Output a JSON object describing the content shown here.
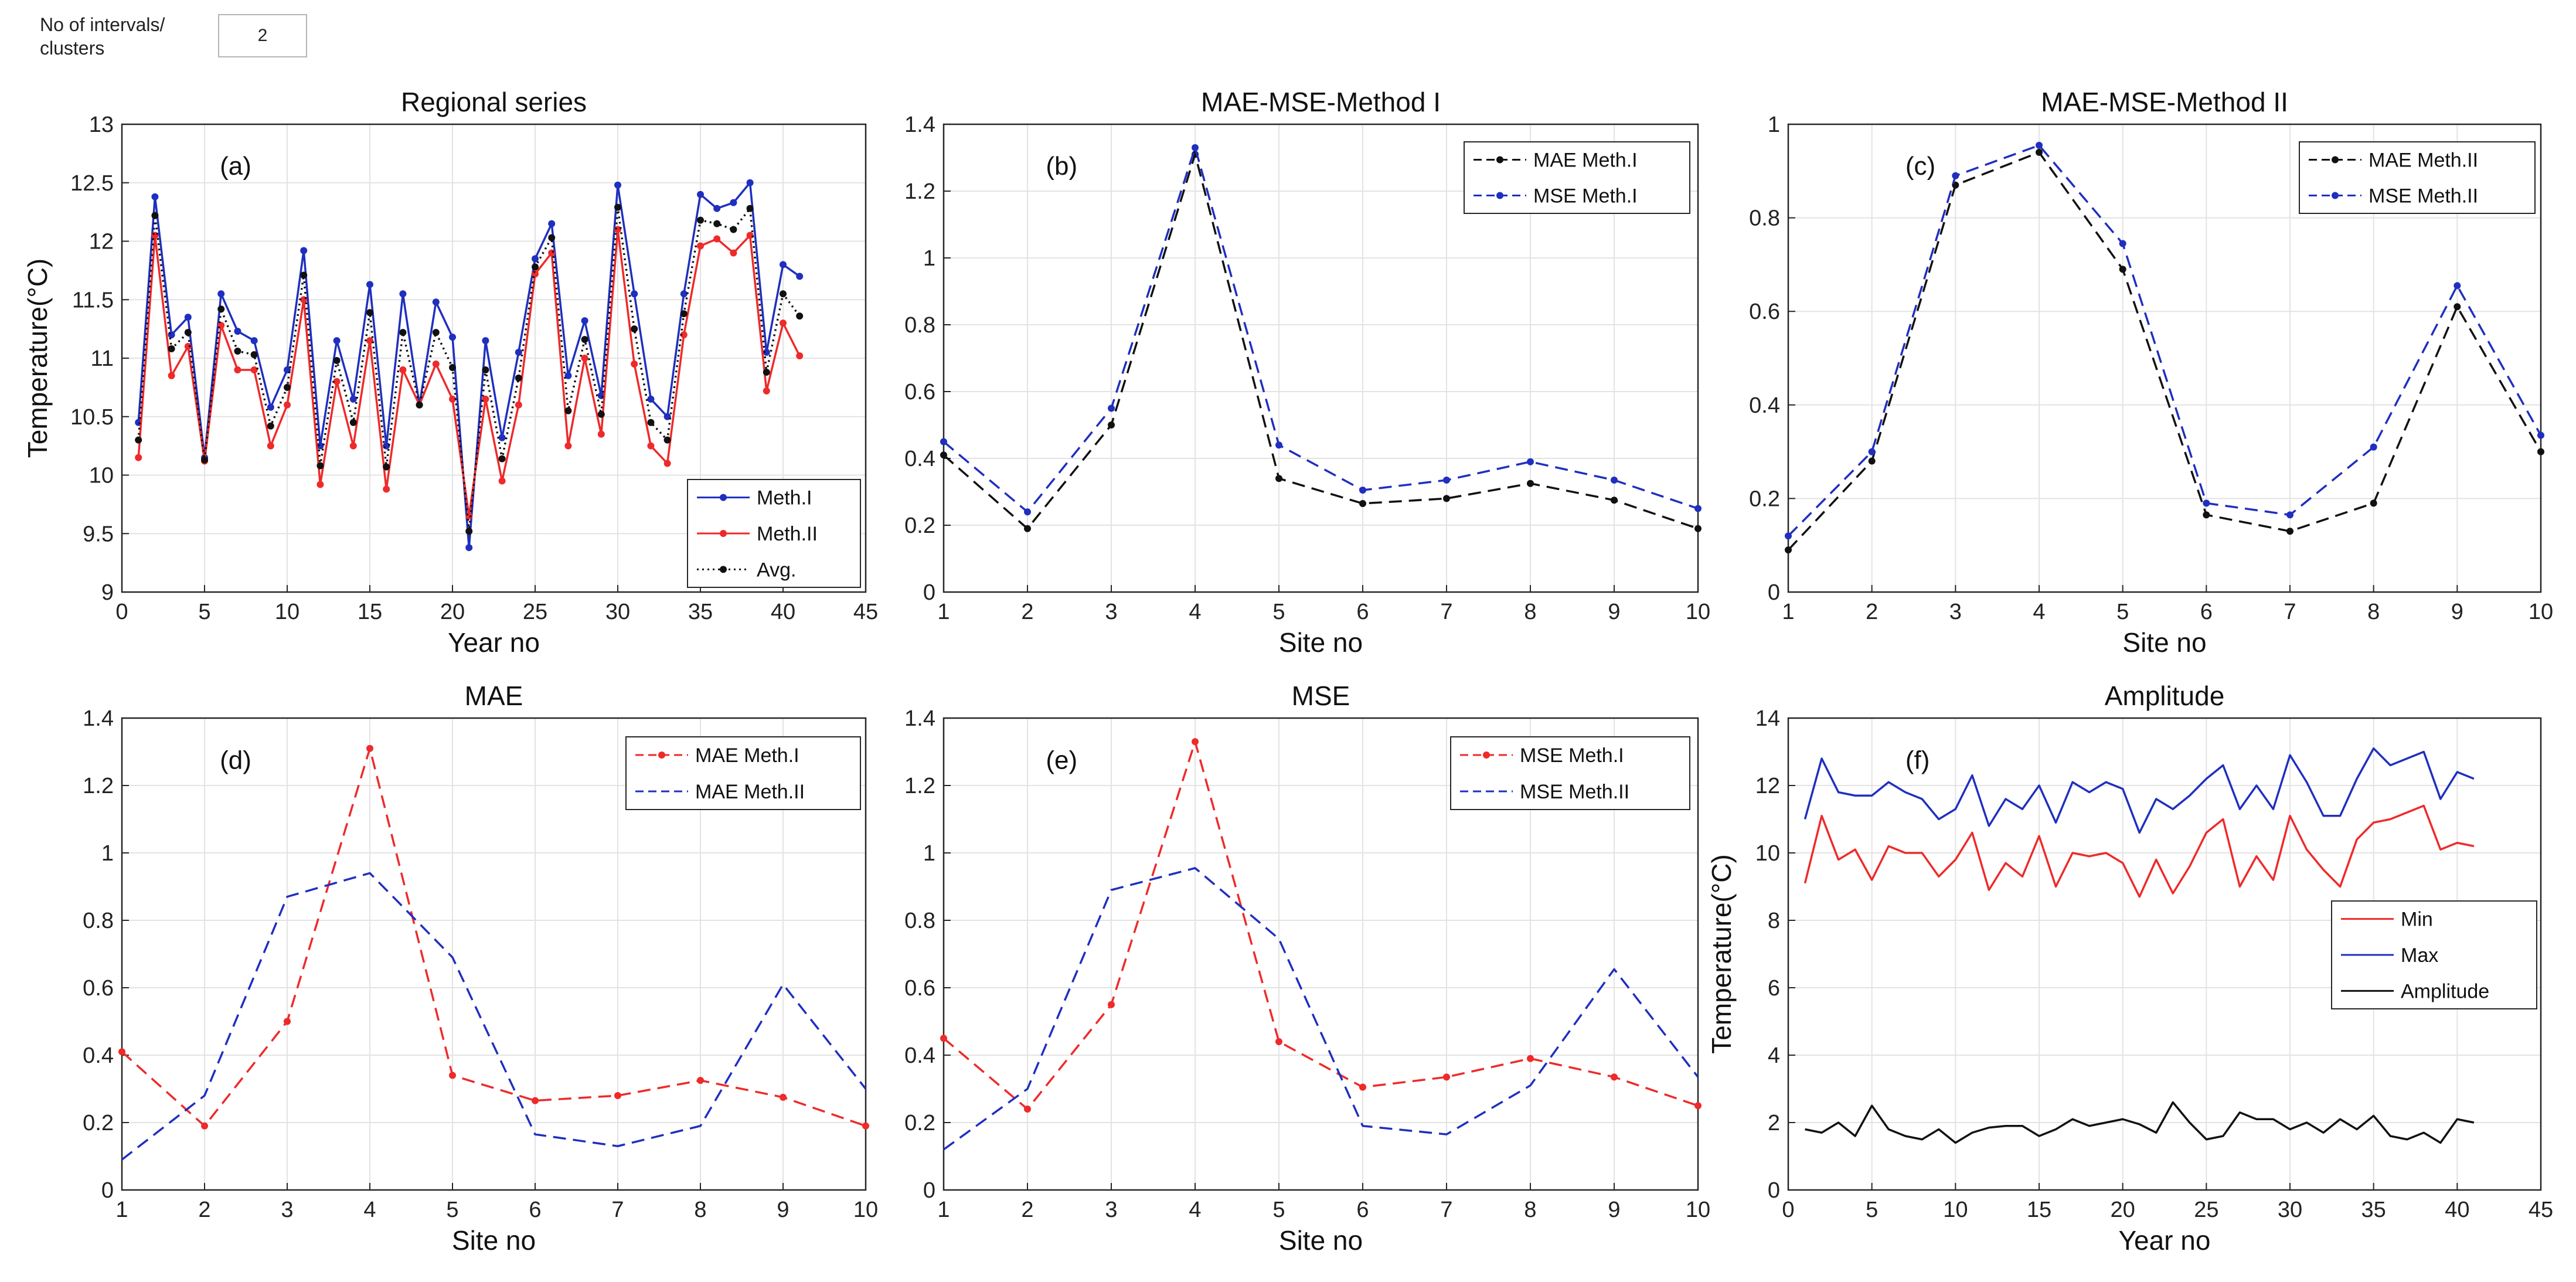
{
  "controls": {
    "intervals_label": "No of intervals/ clusters",
    "intervals_value": "2"
  },
  "colors": {
    "blue": "#1f2fbf",
    "red": "#ee2a2a",
    "black": "#111111"
  },
  "chart_data": [
    {
      "id": "a",
      "type": "line",
      "title": "Regional series",
      "panel_label": "(a)",
      "xlabel": "Year no",
      "ylabel": "Temperature(°C)",
      "xlim": [
        0,
        45
      ],
      "ylim": [
        9,
        13
      ],
      "xticks": [
        0,
        5,
        10,
        15,
        20,
        25,
        30,
        35,
        40,
        45
      ],
      "yticks": [
        9,
        9.5,
        10,
        10.5,
        11,
        11.5,
        12,
        12.5,
        13
      ],
      "ytick_labels": [
        "9",
        "9.5",
        "10",
        "10.5",
        "11",
        "11.5",
        "12",
        "12.5",
        "13"
      ],
      "legend_position": "bottom-right",
      "series": [
        {
          "name": "Meth.I",
          "color": "#1f2fbf",
          "dash": "",
          "marker": true,
          "x": [
            1,
            2,
            3,
            4,
            5,
            6,
            7,
            8,
            9,
            10,
            11,
            12,
            13,
            14,
            15,
            16,
            17,
            18,
            19,
            20,
            21,
            22,
            23,
            24,
            25,
            26,
            27,
            28,
            29,
            30,
            31,
            32,
            33,
            34,
            35,
            36,
            37,
            38,
            39,
            40,
            41
          ],
          "values": [
            10.45,
            12.38,
            11.2,
            11.35,
            10.15,
            11.55,
            11.23,
            11.15,
            10.58,
            10.9,
            11.92,
            10.25,
            11.15,
            10.65,
            11.63,
            10.25,
            11.55,
            10.6,
            11.48,
            11.18,
            9.38,
            11.15,
            10.32,
            11.05,
            11.85,
            12.15,
            10.85,
            11.32,
            10.68,
            12.48,
            11.55,
            10.65,
            10.5,
            11.55,
            12.4,
            12.28,
            12.33,
            12.5,
            11.05,
            11.8,
            11.7
          ]
        },
        {
          "name": "Meth.II",
          "color": "#ee2a2a",
          "dash": "",
          "marker": true,
          "x": [
            1,
            2,
            3,
            4,
            5,
            6,
            7,
            8,
            9,
            10,
            11,
            12,
            13,
            14,
            15,
            16,
            17,
            18,
            19,
            20,
            21,
            22,
            23,
            24,
            25,
            26,
            27,
            28,
            29,
            30,
            31,
            32,
            33,
            34,
            35,
            36,
            37,
            38,
            39,
            40,
            41
          ],
          "values": [
            10.15,
            12.05,
            10.85,
            11.1,
            10.12,
            11.28,
            10.9,
            10.9,
            10.25,
            10.6,
            11.5,
            9.92,
            10.8,
            10.25,
            11.15,
            9.88,
            10.9,
            10.6,
            10.95,
            10.65,
            9.65,
            10.65,
            9.95,
            10.6,
            11.72,
            11.9,
            10.25,
            11.0,
            10.35,
            12.1,
            10.95,
            10.25,
            10.1,
            11.2,
            11.96,
            12.02,
            11.9,
            12.05,
            10.72,
            11.3,
            11.02
          ]
        },
        {
          "name": "Avg.",
          "color": "#111111",
          "dash": "3,6",
          "marker": true,
          "x": [
            1,
            2,
            3,
            4,
            5,
            6,
            7,
            8,
            9,
            10,
            11,
            12,
            13,
            14,
            15,
            16,
            17,
            18,
            19,
            20,
            21,
            22,
            23,
            24,
            25,
            26,
            27,
            28,
            29,
            30,
            31,
            32,
            33,
            34,
            35,
            36,
            37,
            38,
            39,
            40,
            41
          ],
          "values": [
            10.3,
            12.22,
            11.08,
            11.22,
            10.13,
            11.42,
            11.06,
            11.03,
            10.42,
            10.75,
            11.71,
            10.08,
            10.98,
            10.45,
            11.39,
            10.07,
            11.22,
            10.6,
            11.22,
            10.92,
            9.52,
            10.9,
            10.14,
            10.83,
            11.78,
            12.03,
            10.55,
            11.16,
            10.52,
            12.29,
            11.25,
            10.45,
            10.3,
            11.38,
            12.18,
            12.15,
            12.1,
            12.28,
            10.88,
            11.55,
            11.36
          ]
        }
      ]
    },
    {
      "id": "b",
      "type": "line",
      "title": "MAE-MSE-Method I",
      "panel_label": "(b)",
      "xlabel": "Site no",
      "ylabel": "",
      "xlim": [
        1,
        10
      ],
      "ylim": [
        0,
        1.4
      ],
      "xticks": [
        1,
        2,
        3,
        4,
        5,
        6,
        7,
        8,
        9,
        10
      ],
      "yticks": [
        0,
        0.2,
        0.4,
        0.6,
        0.8,
        1,
        1.2,
        1.4
      ],
      "ytick_labels": [
        "0",
        "0.2",
        "0.4",
        "0.6",
        "0.8",
        "1",
        "1.2",
        "1.4"
      ],
      "legend_position": "top-right",
      "series": [
        {
          "name": "MAE Meth.I",
          "color": "#111111",
          "dash": "22,12",
          "marker": true,
          "x": [
            1,
            2,
            3,
            4,
            5,
            6,
            7,
            8,
            9,
            10
          ],
          "values": [
            0.41,
            0.19,
            0.5,
            1.31,
            0.34,
            0.265,
            0.28,
            0.325,
            0.275,
            0.19
          ]
        },
        {
          "name": "MSE Meth.I",
          "color": "#1f2fbf",
          "dash": "22,12",
          "marker": true,
          "x": [
            1,
            2,
            3,
            4,
            5,
            6,
            7,
            8,
            9,
            10
          ],
          "values": [
            0.45,
            0.24,
            0.55,
            1.33,
            0.44,
            0.305,
            0.335,
            0.39,
            0.335,
            0.25
          ]
        }
      ]
    },
    {
      "id": "c",
      "type": "line",
      "title": "MAE-MSE-Method II",
      "panel_label": "(c)",
      "xlabel": "Site no",
      "ylabel": "",
      "xlim": [
        1,
        10
      ],
      "ylim": [
        0,
        1
      ],
      "xticks": [
        1,
        2,
        3,
        4,
        5,
        6,
        7,
        8,
        9,
        10
      ],
      "yticks": [
        0,
        0.2,
        0.4,
        0.6,
        0.8,
        1
      ],
      "ytick_labels": [
        "0",
        "0.2",
        "0.4",
        "0.6",
        "0.8",
        "1"
      ],
      "legend_position": "top-right",
      "series": [
        {
          "name": "MAE Meth.II",
          "color": "#111111",
          "dash": "22,12",
          "marker": true,
          "x": [
            1,
            2,
            3,
            4,
            5,
            6,
            7,
            8,
            9,
            10
          ],
          "values": [
            0.09,
            0.28,
            0.87,
            0.94,
            0.69,
            0.165,
            0.13,
            0.19,
            0.61,
            0.3
          ]
        },
        {
          "name": "MSE Meth.II",
          "color": "#1f2fbf",
          "dash": "22,12",
          "marker": true,
          "x": [
            1,
            2,
            3,
            4,
            5,
            6,
            7,
            8,
            9,
            10
          ],
          "values": [
            0.12,
            0.3,
            0.89,
            0.955,
            0.745,
            0.19,
            0.165,
            0.31,
            0.655,
            0.335
          ]
        }
      ]
    },
    {
      "id": "d",
      "type": "line",
      "title": "MAE",
      "panel_label": "(d)",
      "xlabel": "Site no",
      "ylabel": "",
      "xlim": [
        1,
        10
      ],
      "ylim": [
        0,
        1.4
      ],
      "xticks": [
        1,
        2,
        3,
        4,
        5,
        6,
        7,
        8,
        9,
        10
      ],
      "yticks": [
        0,
        0.2,
        0.4,
        0.6,
        0.8,
        1,
        1.2,
        1.4
      ],
      "ytick_labels": [
        "0",
        "0.2",
        "0.4",
        "0.6",
        "0.8",
        "1",
        "1.2",
        "1.4"
      ],
      "legend_position": "top-right",
      "series": [
        {
          "name": "MAE Meth.I",
          "color": "#ee2a2a",
          "dash": "22,12",
          "marker": true,
          "x": [
            1,
            2,
            3,
            4,
            5,
            6,
            7,
            8,
            9,
            10
          ],
          "values": [
            0.41,
            0.19,
            0.5,
            1.31,
            0.34,
            0.265,
            0.28,
            0.325,
            0.275,
            0.19
          ]
        },
        {
          "name": "MAE Meth.II",
          "color": "#1f2fbf",
          "dash": "22,12",
          "marker": false,
          "x": [
            1,
            2,
            3,
            4,
            5,
            6,
            7,
            8,
            9,
            10
          ],
          "values": [
            0.09,
            0.28,
            0.87,
            0.94,
            0.69,
            0.165,
            0.13,
            0.19,
            0.61,
            0.3
          ]
        }
      ]
    },
    {
      "id": "e",
      "type": "line",
      "title": "MSE",
      "panel_label": "(e)",
      "xlabel": "Site no",
      "ylabel": "",
      "xlim": [
        1,
        10
      ],
      "ylim": [
        0,
        1.4
      ],
      "xticks": [
        1,
        2,
        3,
        4,
        5,
        6,
        7,
        8,
        9,
        10
      ],
      "yticks": [
        0,
        0.2,
        0.4,
        0.6,
        0.8,
        1,
        1.2,
        1.4
      ],
      "ytick_labels": [
        "0",
        "0.2",
        "0.4",
        "0.6",
        "0.8",
        "1",
        "1.2",
        "1.4"
      ],
      "legend_position": "top-right",
      "series": [
        {
          "name": "MSE Meth.I",
          "color": "#ee2a2a",
          "dash": "22,12",
          "marker": true,
          "x": [
            1,
            2,
            3,
            4,
            5,
            6,
            7,
            8,
            9,
            10
          ],
          "values": [
            0.45,
            0.24,
            0.55,
            1.33,
            0.44,
            0.305,
            0.335,
            0.39,
            0.335,
            0.25
          ]
        },
        {
          "name": "MSE Meth.II",
          "color": "#1f2fbf",
          "dash": "22,12",
          "marker": false,
          "x": [
            1,
            2,
            3,
            4,
            5,
            6,
            7,
            8,
            9,
            10
          ],
          "values": [
            0.12,
            0.3,
            0.89,
            0.955,
            0.745,
            0.19,
            0.165,
            0.31,
            0.655,
            0.335
          ]
        }
      ]
    },
    {
      "id": "f",
      "type": "line",
      "title": "Amplitude",
      "panel_label": "(f)",
      "xlabel": "Year no",
      "ylabel": "Temperature(°C)",
      "xlim": [
        0,
        45
      ],
      "ylim": [
        0,
        14
      ],
      "xticks": [
        0,
        5,
        10,
        15,
        20,
        25,
        30,
        35,
        40,
        45
      ],
      "yticks": [
        0,
        2,
        4,
        6,
        8,
        10,
        12,
        14
      ],
      "ytick_labels": [
        "0",
        "2",
        "4",
        "6",
        "8",
        "10",
        "12",
        "14"
      ],
      "legend_position": "middle-right",
      "series": [
        {
          "name": "Min",
          "color": "#ee2a2a",
          "dash": "",
          "marker": false,
          "x": [
            1,
            2,
            3,
            4,
            5,
            6,
            7,
            8,
            9,
            10,
            11,
            12,
            13,
            14,
            15,
            16,
            17,
            18,
            19,
            20,
            21,
            22,
            23,
            24,
            25,
            26,
            27,
            28,
            29,
            30,
            31,
            32,
            33,
            34,
            35,
            36,
            37,
            38,
            39,
            40,
            41
          ],
          "values": [
            9.1,
            11.1,
            9.8,
            10.1,
            9.2,
            10.2,
            10.0,
            10.0,
            9.3,
            9.8,
            10.6,
            8.9,
            9.7,
            9.3,
            10.5,
            9.0,
            10.0,
            9.9,
            10.0,
            9.7,
            8.7,
            9.8,
            8.8,
            9.6,
            10.6,
            11.0,
            9.0,
            9.9,
            9.2,
            11.1,
            10.1,
            9.5,
            9.0,
            10.4,
            10.9,
            11.0,
            11.2,
            11.4,
            10.1,
            10.3,
            10.2
          ]
        },
        {
          "name": "Max",
          "color": "#1f2fbf",
          "dash": "",
          "marker": false,
          "x": [
            1,
            2,
            3,
            4,
            5,
            6,
            7,
            8,
            9,
            10,
            11,
            12,
            13,
            14,
            15,
            16,
            17,
            18,
            19,
            20,
            21,
            22,
            23,
            24,
            25,
            26,
            27,
            28,
            29,
            30,
            31,
            32,
            33,
            34,
            35,
            36,
            37,
            38,
            39,
            40,
            41
          ],
          "values": [
            11.0,
            12.8,
            11.8,
            11.7,
            11.7,
            12.1,
            11.8,
            11.6,
            11.0,
            11.3,
            12.3,
            10.8,
            11.6,
            11.3,
            12.0,
            10.9,
            12.1,
            11.8,
            12.1,
            11.9,
            10.6,
            11.6,
            11.3,
            11.7,
            12.2,
            12.6,
            11.3,
            12.0,
            11.3,
            12.9,
            12.1,
            11.1,
            11.1,
            12.2,
            13.1,
            12.6,
            12.8,
            13.0,
            11.6,
            12.4,
            12.2
          ]
        },
        {
          "name": "Amplitude",
          "color": "#111111",
          "dash": "",
          "marker": false,
          "x": [
            1,
            2,
            3,
            4,
            5,
            6,
            7,
            8,
            9,
            10,
            11,
            12,
            13,
            14,
            15,
            16,
            17,
            18,
            19,
            20,
            21,
            22,
            23,
            24,
            25,
            26,
            27,
            28,
            29,
            30,
            31,
            32,
            33,
            34,
            35,
            36,
            37,
            38,
            39,
            40,
            41
          ],
          "values": [
            1.8,
            1.7,
            2.0,
            1.6,
            2.5,
            1.8,
            1.6,
            1.5,
            1.8,
            1.4,
            1.7,
            1.85,
            1.9,
            1.9,
            1.6,
            1.8,
            2.1,
            1.9,
            2.0,
            2.1,
            1.95,
            1.7,
            2.6,
            2.0,
            1.5,
            1.6,
            2.3,
            2.1,
            2.1,
            1.8,
            2.0,
            1.7,
            2.1,
            1.8,
            2.2,
            1.6,
            1.5,
            1.7,
            1.4,
            2.1,
            2.0
          ]
        }
      ]
    }
  ]
}
